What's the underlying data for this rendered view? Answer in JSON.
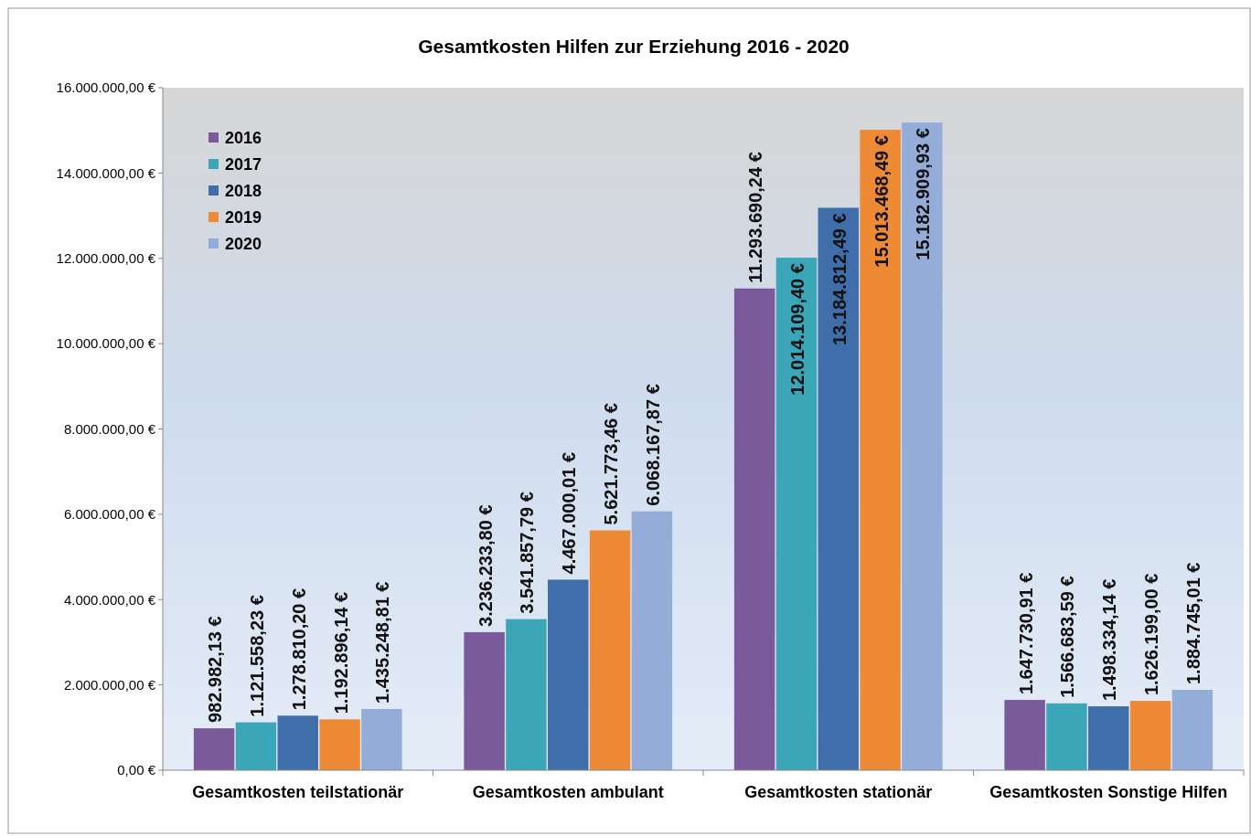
{
  "chart_data": {
    "type": "bar",
    "title": "Gesamtkosten Hilfen zur Erziehung 2016 - 2020",
    "categories": [
      "Gesamtkosten teilstationär",
      "Gesamtkosten ambulant",
      "Gesamtkosten stationär",
      "Gesamtkosten Sonstige Hilfen"
    ],
    "series": [
      {
        "name": "2016",
        "color": "#7b5a9b",
        "values": [
          982982.13,
          3236233.8,
          11293690.24,
          1647730.91
        ],
        "value_labels": [
          "982.982,13 €",
          "3.236.233,80 €",
          "11.293.690,24 €",
          "1.647.730,91 €"
        ]
      },
      {
        "name": "2017",
        "color": "#3aa6b8",
        "values": [
          1121558.23,
          3541857.79,
          12014109.4,
          1566683.59
        ],
        "value_labels": [
          "1.121.558,23 €",
          "3.541.857,79 €",
          "12.014.109,40 €",
          "1.566.683,59 €"
        ]
      },
      {
        "name": "2018",
        "color": "#3f6eaa",
        "values": [
          1278810.2,
          4467000.01,
          13184812.49,
          1498334.14
        ],
        "value_labels": [
          "1.278.810,20 €",
          "4.467.000,01 €",
          "13.184.812,49 €",
          "1.498.334,14 €"
        ]
      },
      {
        "name": "2019",
        "color": "#ee8a35",
        "values": [
          1192896.14,
          5621773.46,
          15013468.49,
          1626199.0
        ],
        "value_labels": [
          "1.192.896,14 €",
          "5.621.773,46 €",
          "15.013.468,49 €",
          "1.626.199,00 €"
        ]
      },
      {
        "name": "2020",
        "color": "#93acd8",
        "values": [
          1435248.81,
          6068167.87,
          15182909.93,
          1884745.01
        ],
        "value_labels": [
          "1.435.248,81 €",
          "6.068.167,87 €",
          "15.182.909,93 €",
          "1.884.745,01 €"
        ]
      }
    ],
    "ylim": [
      0,
      16000000
    ],
    "yticks": [
      {
        "value": 0,
        "label": "0,00 €"
      },
      {
        "value": 2000000,
        "label": "2.000.000,00 €"
      },
      {
        "value": 4000000,
        "label": "4.000.000,00 €"
      },
      {
        "value": 6000000,
        "label": "6.000.000,00 €"
      },
      {
        "value": 8000000,
        "label": "8.000.000,00 €"
      },
      {
        "value": 10000000,
        "label": "10.000.000,00 €"
      },
      {
        "value": 12000000,
        "label": "12.000.000,00 €"
      },
      {
        "value": 14000000,
        "label": "14.000.000,00 €"
      },
      {
        "value": 16000000,
        "label": "16.000.000,00 €"
      }
    ],
    "grid": false,
    "legend": "top left"
  }
}
